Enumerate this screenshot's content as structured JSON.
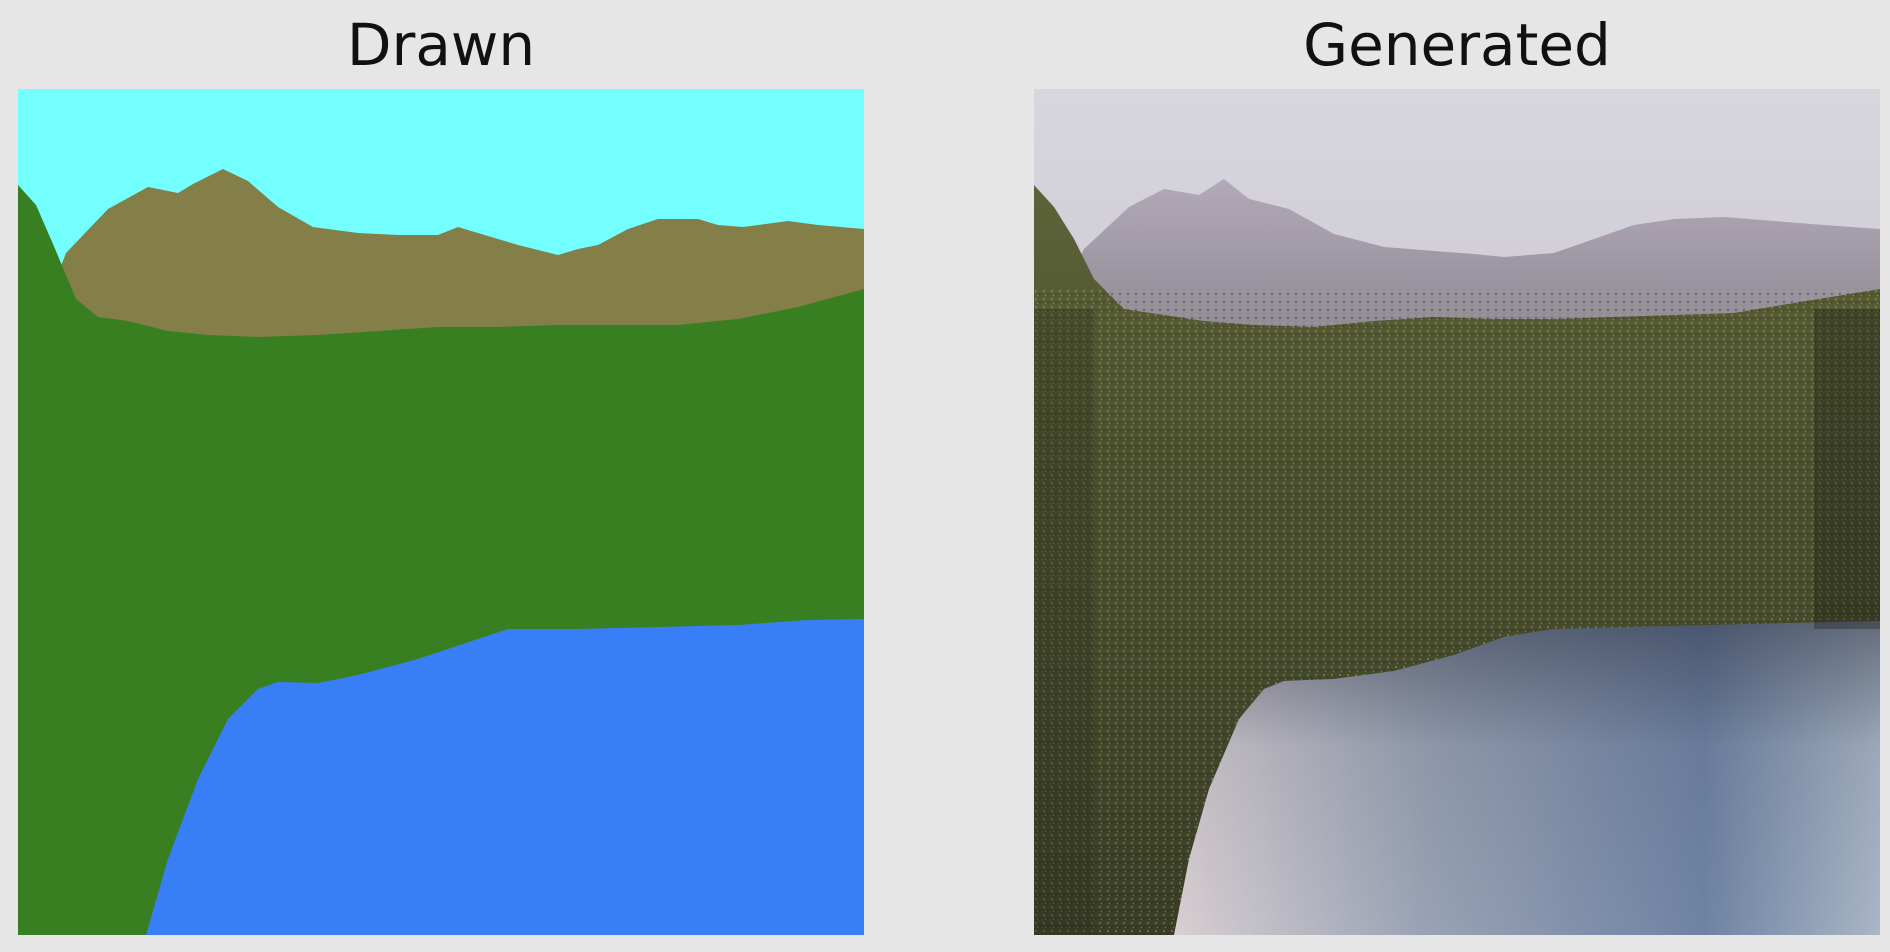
{
  "panels": [
    {
      "title": "Drawn",
      "image": "segmentation-map-drawing",
      "colors": {
        "sky": "#73ffff",
        "mountain": "#847e49",
        "grass": "#387f22",
        "water": "#387ff7"
      }
    },
    {
      "title": "Generated",
      "image": "generated-landscape-photo",
      "colors": {
        "sky": "#cfcbd4",
        "mountain": "#a89fad",
        "grass": "#4f5530",
        "water": "#8c9aae"
      }
    }
  ],
  "background_color": "#e6e6e6"
}
